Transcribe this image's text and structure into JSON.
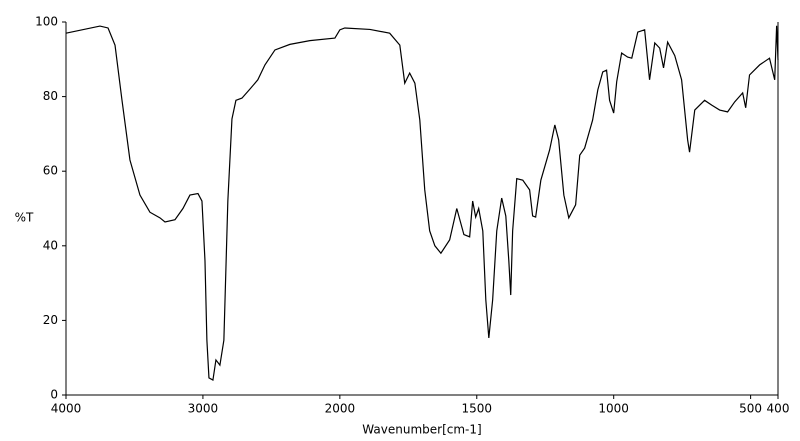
{
  "chart_data": {
    "type": "line",
    "xlabel": "Wavenumber[cm-1]",
    "ylabel": "%T",
    "xlim": [
      4000,
      400
    ],
    "xticks": [
      4000,
      3000,
      2000,
      1500,
      1000,
      500,
      400
    ],
    "x_scale_break": 2000,
    "x_scale_factor": 2,
    "ylim": [
      0,
      100
    ],
    "yticks": [
      0,
      20,
      40,
      60,
      80,
      100
    ],
    "color": "#000000",
    "x": [
      4000,
      3752,
      3693,
      3642,
      3591,
      3533,
      3460,
      3387,
      3314,
      3277,
      3204,
      3146,
      3095,
      3036,
      3007,
      2985,
      2971,
      2956,
      2927,
      2905,
      2876,
      2847,
      2818,
      2788,
      2759,
      2715,
      2657,
      2599,
      2547,
      2474,
      2365,
      2219,
      2036,
      2000,
      1982,
      1890,
      1818,
      1781,
      1763,
      1745,
      1726,
      1708,
      1690,
      1672,
      1653,
      1631,
      1599,
      1573,
      1547,
      1526,
      1515,
      1504,
      1493,
      1478,
      1467,
      1456,
      1442,
      1427,
      1409,
      1394,
      1383,
      1376,
      1369,
      1354,
      1332,
      1307,
      1296,
      1285,
      1266,
      1234,
      1215,
      1201,
      1182,
      1164,
      1139,
      1124,
      1106,
      1077,
      1058,
      1040,
      1026,
      1015,
      1000,
      989,
      971,
      949,
      934,
      912,
      887,
      869,
      850,
      832,
      818,
      803,
      777,
      752,
      730,
      723,
      704,
      668,
      642,
      613,
      584,
      558,
      529,
      518,
      504,
      467,
      431,
      412,
      405,
      400
    ],
    "values": [
      97,
      98.9,
      98.4,
      93.8,
      79,
      63,
      53.6,
      49,
      47.5,
      46.4,
      47,
      50,
      53.6,
      54,
      52,
      36,
      14.7,
      4.6,
      4,
      9.4,
      8,
      14.7,
      52,
      74,
      79,
      79.6,
      82,
      84.5,
      88.5,
      92.5,
      94,
      95,
      95.7,
      97.9,
      98.4,
      98,
      97,
      93.8,
      83.6,
      86.3,
      83.6,
      73.7,
      55,
      44,
      40,
      38,
      41.6,
      50,
      43,
      42.4,
      52,
      47.7,
      50,
      44,
      25.5,
      15.3,
      25.5,
      44,
      52.8,
      48,
      36,
      26.8,
      44,
      58,
      57.6,
      55,
      48,
      47.7,
      57.6,
      65.7,
      72.4,
      68.4,
      53.6,
      47.5,
      51,
      64.3,
      66.2,
      73.7,
      81.8,
      86.6,
      87.1,
      79,
      75.6,
      84,
      91.7,
      90.6,
      90.3,
      97.3,
      97.9,
      84.5,
      94.4,
      93,
      87.7,
      94.6,
      91,
      84.5,
      68.4,
      65.1,
      76.4,
      79,
      77.7,
      76.4,
      75.9,
      78.6,
      81,
      77,
      85.8,
      88.5,
      90.3,
      84.5,
      99,
      89.8
    ]
  }
}
